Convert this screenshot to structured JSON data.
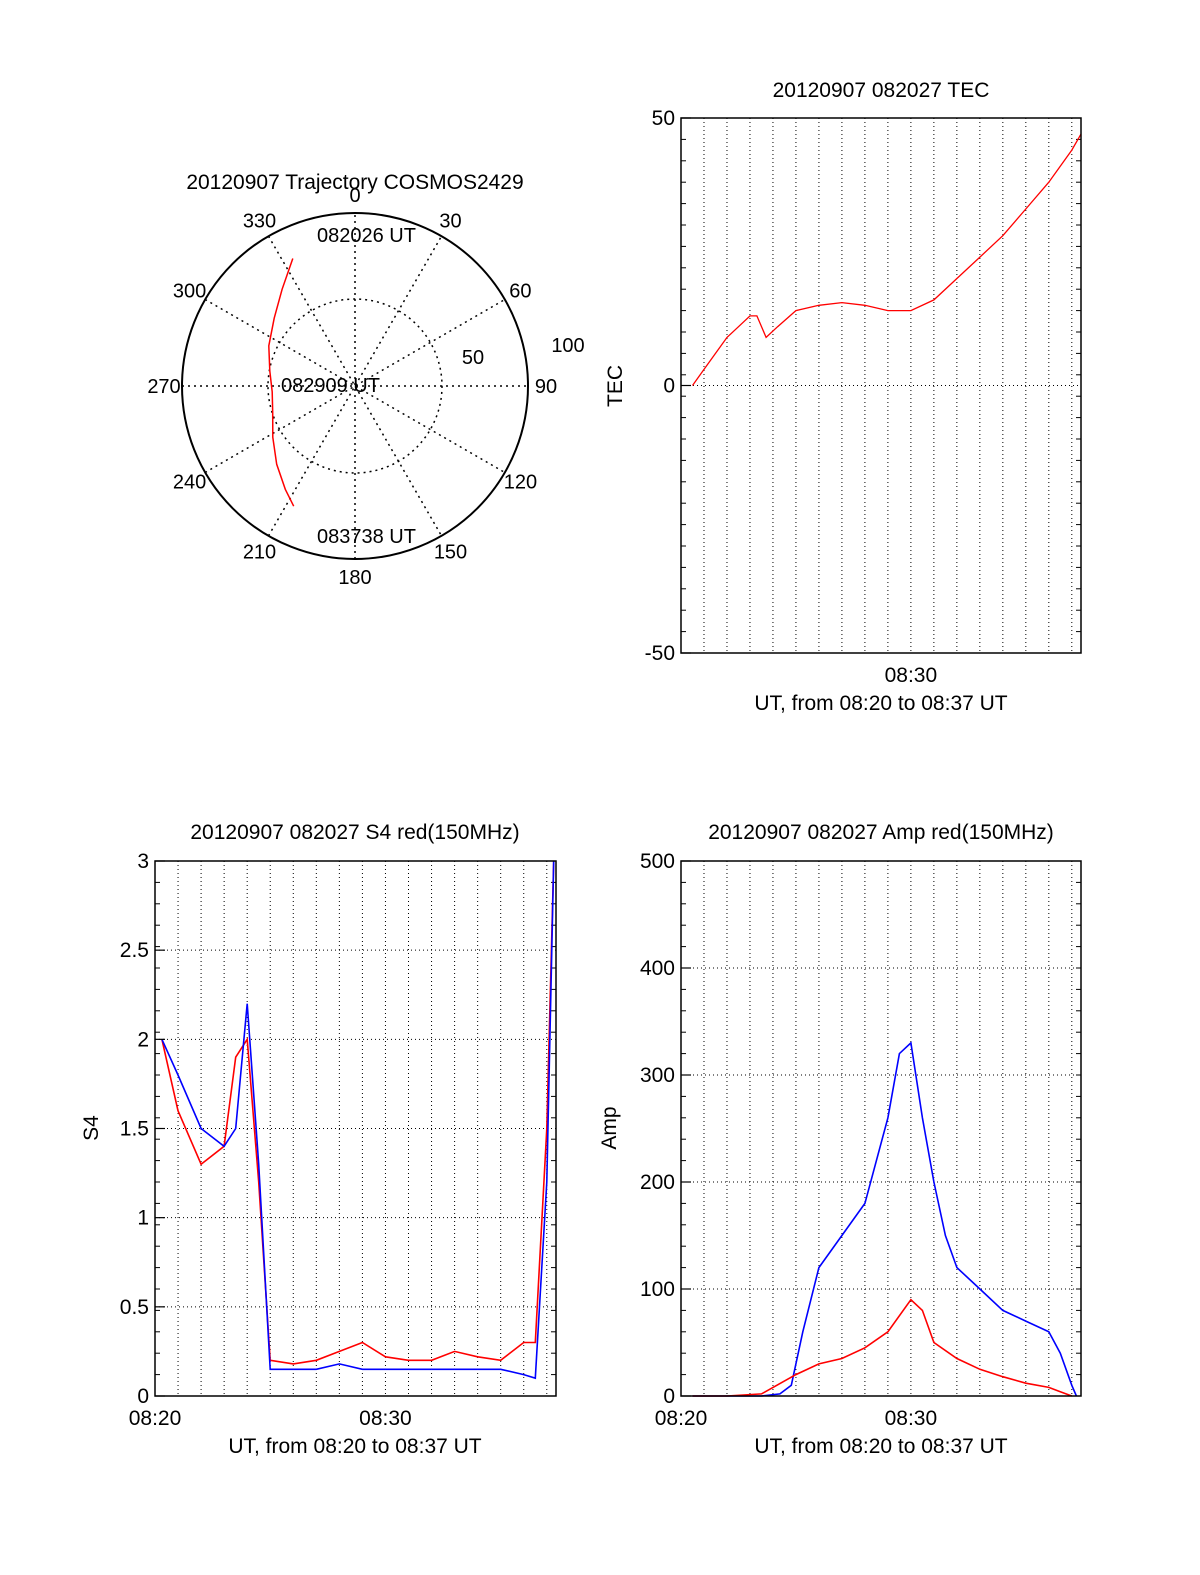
{
  "colors": {
    "red": "#ff0000",
    "blue": "#0000ff",
    "axis": "#000000",
    "grid": "#000000"
  },
  "chart_data": [
    {
      "id": "trajectory",
      "type": "polar",
      "title": "20120907 Trajectory COSMOS2429",
      "radial_range": [
        0,
        100
      ],
      "radial_labels": [
        "50",
        "100"
      ],
      "angle_labels": [
        "0",
        "30",
        "60",
        "90",
        "120",
        "150",
        "180",
        "210",
        "240",
        "270",
        "300",
        "330"
      ],
      "annotations": {
        "start": "082026 UT",
        "mid": "082909 UT",
        "end": "083738 UT"
      },
      "series": [
        {
          "color": "red",
          "points": [
            [
              334,
              82
            ],
            [
              323,
              70
            ],
            [
              310,
              61
            ],
            [
              295,
              55
            ],
            [
              280,
              50
            ],
            [
              266,
              48
            ],
            [
              252,
              50
            ],
            [
              238,
              56
            ],
            [
              225,
              64
            ],
            [
              214,
              72
            ],
            [
              207,
              78
            ]
          ]
        }
      ]
    },
    {
      "id": "tec",
      "type": "line",
      "title": "20120907 082027 TEC",
      "xlabel": "UT, from 08:20 to 08:37 UT",
      "ylabel": "TEC",
      "xlim": [
        0,
        17.4
      ],
      "ylim": [
        -50,
        50
      ],
      "xticks": [
        {
          "v": 10,
          "label": "08:30"
        }
      ],
      "yticks": [
        {
          "v": -50,
          "label": "-50"
        },
        {
          "v": 0,
          "label": "0"
        },
        {
          "v": 50,
          "label": "50"
        }
      ],
      "series": [
        {
          "color": "red",
          "x": [
            0.5,
            1.0,
            1.5,
            2.0,
            2.5,
            3.0,
            3.3,
            3.7,
            4.2,
            5.0,
            6.0,
            7.0,
            8.0,
            9.0,
            10.0,
            11.0,
            12.0,
            13.0,
            14.0,
            15.0,
            16.0,
            17.0,
            17.4
          ],
          "y": [
            0,
            3,
            6,
            9,
            11,
            13,
            13,
            9,
            11,
            14,
            15,
            15.5,
            15,
            14,
            14,
            16,
            20,
            24,
            28,
            33,
            38,
            44,
            47
          ]
        }
      ]
    },
    {
      "id": "s4",
      "type": "line",
      "title": "20120907 082027 S4 red(150MHz)",
      "xlabel": "UT, from 08:20 to 08:37 UT",
      "ylabel": "S4",
      "xlim": [
        0,
        17.4
      ],
      "ylim": [
        0,
        3
      ],
      "xticks": [
        {
          "v": 0,
          "label": "08:20"
        },
        {
          "v": 10,
          "label": "08:30"
        }
      ],
      "yticks": [
        {
          "v": 0,
          "label": "0"
        },
        {
          "v": 0.5,
          "label": "0.5"
        },
        {
          "v": 1,
          "label": "1"
        },
        {
          "v": 1.5,
          "label": "1.5"
        },
        {
          "v": 2,
          "label": "2"
        },
        {
          "v": 2.5,
          "label": "2.5"
        },
        {
          "v": 3,
          "label": "3"
        }
      ],
      "series": [
        {
          "color": "red",
          "x": [
            0.3,
            1.0,
            2.0,
            3.0,
            3.5,
            4.0,
            4.5,
            5.0,
            6.0,
            7.0,
            8.0,
            9.0,
            10.0,
            11.0,
            12.0,
            13.0,
            14.0,
            15.0,
            16.0,
            16.5,
            17.0,
            17.3
          ],
          "y": [
            2.0,
            1.6,
            1.3,
            1.4,
            1.9,
            2.0,
            1.2,
            0.2,
            0.18,
            0.2,
            0.25,
            0.3,
            0.22,
            0.2,
            0.2,
            0.25,
            0.22,
            0.2,
            0.3,
            0.3,
            1.5,
            3.0
          ]
        },
        {
          "color": "blue",
          "x": [
            0.3,
            1.0,
            2.0,
            3.0,
            3.5,
            4.0,
            4.5,
            5.0,
            6.0,
            7.0,
            8.0,
            9.0,
            10.0,
            11.0,
            12.0,
            13.0,
            14.0,
            15.0,
            16.0,
            16.5,
            17.0,
            17.3
          ],
          "y": [
            2.0,
            1.8,
            1.5,
            1.4,
            1.5,
            2.2,
            1.3,
            0.15,
            0.15,
            0.15,
            0.18,
            0.15,
            0.15,
            0.15,
            0.15,
            0.15,
            0.15,
            0.15,
            0.12,
            0.1,
            1.2,
            3.0
          ]
        }
      ]
    },
    {
      "id": "amp",
      "type": "line",
      "title": "20120907 082027 Amp red(150MHz)",
      "xlabel": "UT, from 08:20 to 08:37 UT",
      "ylabel": "Amp",
      "xlim": [
        0,
        17.4
      ],
      "ylim": [
        0,
        500
      ],
      "xticks": [
        {
          "v": 0,
          "label": "08:20"
        },
        {
          "v": 10,
          "label": "08:30"
        }
      ],
      "yticks": [
        {
          "v": 0,
          "label": "0"
        },
        {
          "v": 100,
          "label": "100"
        },
        {
          "v": 200,
          "label": "200"
        },
        {
          "v": 300,
          "label": "300"
        },
        {
          "v": 400,
          "label": "400"
        },
        {
          "v": 500,
          "label": "500"
        }
      ],
      "series": [
        {
          "color": "blue",
          "x": [
            0.5,
            2.0,
            3.5,
            4.3,
            4.8,
            5.3,
            6.0,
            7.0,
            8.0,
            9.0,
            9.5,
            10.0,
            10.5,
            11.0,
            11.5,
            12.0,
            13.0,
            14.0,
            15.0,
            16.0,
            16.5,
            17.0,
            17.2
          ],
          "y": [
            0,
            0,
            0,
            2,
            10,
            60,
            120,
            150,
            180,
            260,
            320,
            330,
            260,
            200,
            150,
            120,
            100,
            80,
            70,
            60,
            40,
            10,
            0
          ]
        },
        {
          "color": "red",
          "x": [
            0.5,
            2.0,
            3.5,
            4.0,
            5.0,
            6.0,
            7.0,
            8.0,
            9.0,
            10.0,
            10.5,
            11.0,
            12.0,
            13.0,
            14.0,
            15.0,
            16.0,
            16.5,
            17.0
          ],
          "y": [
            0,
            0,
            2,
            8,
            20,
            30,
            35,
            45,
            60,
            90,
            80,
            50,
            35,
            25,
            18,
            12,
            8,
            4,
            0
          ]
        }
      ]
    }
  ]
}
